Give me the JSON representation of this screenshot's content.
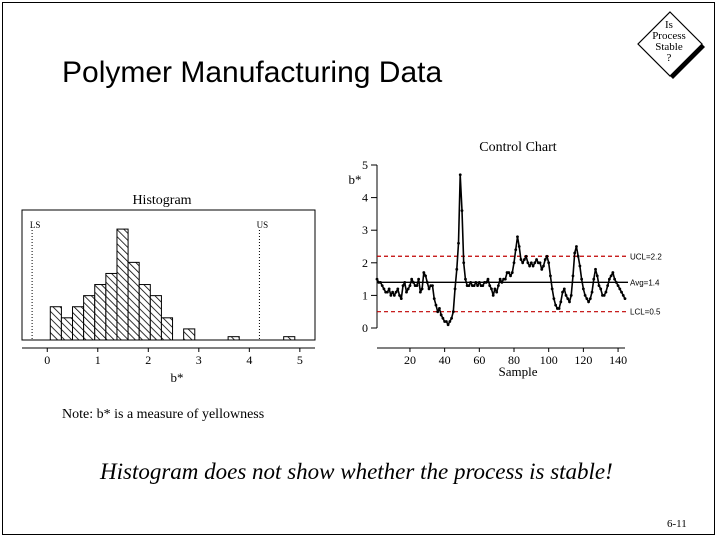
{
  "title": "Polymer Manufacturing Data",
  "badge": {
    "lines": [
      "Is",
      "Process",
      "Stable",
      "?"
    ]
  },
  "note": "Note: b* is a measure of yellowness",
  "conclusion": "Histogram does not show whether the process is stable!",
  "page_number": "6-11",
  "chart_data": [
    {
      "type": "bar",
      "title": "Histogram",
      "xlabel": "b*",
      "ylabel": "",
      "xlim": [
        -0.5,
        5.3
      ],
      "xticks": [
        0,
        1,
        2,
        3,
        4,
        5
      ],
      "bin_width": 0.22,
      "bin_starts": [
        0.06,
        0.28,
        0.5,
        0.72,
        0.94,
        1.16,
        1.38,
        1.6,
        1.82,
        2.04,
        2.26,
        2.7,
        3.58,
        4.68
      ],
      "values": [
        3,
        2,
        3,
        4,
        5,
        6,
        10,
        7,
        5,
        4,
        2,
        1,
        0.3,
        0.3
      ],
      "spec_limits": [
        {
          "label": "LS",
          "value": -0.3
        },
        {
          "label": "US",
          "value": 4.2
        }
      ],
      "pattern": "diagonal-hatch"
    },
    {
      "type": "line",
      "title": "Control Chart",
      "xlabel": "Sample",
      "ylabel": "b*",
      "xlim": [
        1,
        144
      ],
      "ylim": [
        0,
        5
      ],
      "xticks": [
        20,
        40,
        60,
        80,
        100,
        120,
        140
      ],
      "yticks": [
        0,
        1,
        2,
        3,
        4,
        5
      ],
      "control_limits": [
        {
          "label": "UCL=2.2",
          "value": 2.2,
          "style": "dashed"
        },
        {
          "label": "Avg=1.4",
          "value": 1.4,
          "style": "solid"
        },
        {
          "label": "LCL=0.5",
          "value": 0.5,
          "style": "dashed"
        }
      ],
      "x": [
        1,
        2,
        3,
        4,
        5,
        6,
        7,
        8,
        9,
        10,
        11,
        12,
        13,
        14,
        15,
        16,
        17,
        18,
        19,
        20,
        21,
        22,
        23,
        24,
        25,
        26,
        27,
        28,
        29,
        30,
        31,
        32,
        33,
        34,
        35,
        36,
        37,
        38,
        39,
        40,
        41,
        42,
        43,
        44,
        45,
        46,
        47,
        48,
        49,
        50,
        51,
        52,
        53,
        54,
        55,
        56,
        57,
        58,
        59,
        60,
        61,
        62,
        63,
        64,
        65,
        66,
        67,
        68,
        69,
        70,
        71,
        72,
        73,
        74,
        75,
        76,
        77,
        78,
        79,
        80,
        81,
        82,
        83,
        84,
        85,
        86,
        87,
        88,
        89,
        90,
        91,
        92,
        93,
        94,
        95,
        96,
        97,
        98,
        99,
        100,
        101,
        102,
        103,
        104,
        105,
        106,
        107,
        108,
        109,
        110,
        111,
        112,
        113,
        114,
        115,
        116,
        117,
        118,
        119,
        120,
        121,
        122,
        123,
        124,
        125,
        126,
        127,
        128,
        129,
        130,
        131,
        132,
        133,
        134,
        135,
        136,
        137,
        138,
        139,
        140,
        141,
        142,
        143,
        144
      ],
      "y": [
        1.5,
        1.4,
        1.4,
        1.3,
        1.2,
        1.1,
        1.1,
        1.2,
        1.0,
        1.1,
        1.0,
        1.1,
        1.2,
        1.0,
        0.9,
        1.3,
        1.4,
        1.1,
        1.2,
        1.3,
        1.5,
        1.4,
        1.3,
        1.3,
        1.5,
        1.1,
        1.2,
        1.7,
        1.6,
        1.4,
        1.2,
        1.3,
        1.3,
        0.9,
        0.7,
        0.5,
        0.6,
        0.4,
        0.3,
        0.2,
        0.2,
        0.1,
        0.2,
        0.3,
        0.5,
        1.2,
        1.8,
        2.6,
        4.7,
        3.6,
        2.0,
        1.5,
        1.3,
        1.3,
        1.4,
        1.3,
        1.3,
        1.4,
        1.3,
        1.4,
        1.3,
        1.3,
        1.4,
        1.4,
        1.5,
        1.3,
        1.2,
        1.0,
        1.2,
        1.1,
        1.3,
        1.5,
        1.4,
        1.5,
        1.5,
        1.7,
        1.7,
        1.6,
        1.7,
        2.0,
        2.4,
        2.8,
        2.5,
        2.1,
        2.0,
        2.1,
        2.2,
        2.0,
        1.9,
        2.0,
        1.9,
        2.0,
        2.1,
        2.0,
        2.0,
        1.8,
        1.9,
        2.1,
        2.2,
        2.0,
        1.6,
        1.2,
        0.9,
        0.7,
        0.6,
        0.6,
        0.8,
        1.1,
        1.2,
        1.0,
        0.9,
        0.8,
        1.0,
        1.6,
        2.3,
        2.5,
        2.2,
        1.9,
        1.5,
        1.2,
        1.0,
        0.9,
        0.8,
        0.9,
        1.1,
        1.5,
        1.8,
        1.6,
        1.3,
        1.2,
        1.0,
        1.0,
        1.1,
        1.3,
        1.5,
        1.6,
        1.7,
        1.5,
        1.4,
        1.3,
        1.2,
        1.1,
        1.0,
        0.9
      ]
    }
  ]
}
